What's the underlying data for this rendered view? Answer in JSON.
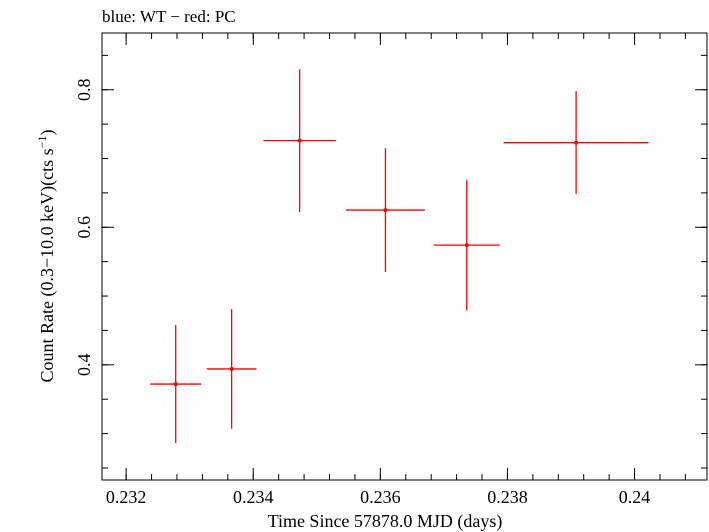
{
  "chart_data": {
    "type": "scatter",
    "title": "blue: WT − red: PC",
    "xlabel": "Time Since 57878.0 MJD (days)",
    "ylabel_main": "Count Rate (0.3−10.0 keV)(cts s",
    "ylabel_sup": "−1",
    "ylabel_close": ")",
    "xlim": [
      0.23162,
      0.24114
    ],
    "ylim": [
      0.2325,
      0.8825
    ],
    "xticks": [
      0.232,
      0.234,
      0.236,
      0.238,
      0.24
    ],
    "xtick_labels": [
      "0.232",
      "0.234",
      "0.236",
      "0.238",
      "0.24"
    ],
    "yticks": [
      0.4,
      0.6,
      0.8
    ],
    "ytick_labels": [
      "0.4",
      "0.6",
      "0.8"
    ],
    "grid": false,
    "series": [
      {
        "color": "#ff0000",
        "points": [
          {
            "x": 0.23278,
            "xerr_lo": 0.0004,
            "xerr_hi": 0.0004,
            "y": 0.372,
            "yerr": 0.086
          },
          {
            "x": 0.23366,
            "xerr_lo": 0.00039,
            "xerr_hi": 0.00039,
            "y": 0.394,
            "yerr": 0.087
          },
          {
            "x": 0.23473,
            "xerr_lo": 0.00057,
            "xerr_hi": 0.00057,
            "y": 0.726,
            "yerr": 0.104
          },
          {
            "x": 0.23608,
            "xerr_lo": 0.00062,
            "xerr_hi": 0.00062,
            "y": 0.625,
            "yerr": 0.09
          },
          {
            "x": 0.23736,
            "xerr_lo": 0.00052,
            "xerr_hi": 0.00052,
            "y": 0.574,
            "yerr": 0.095
          },
          {
            "x": 0.23908,
            "xerr_lo": 0.00114,
            "xerr_hi": 0.00114,
            "y": 0.723,
            "yerr": 0.075
          }
        ]
      }
    ]
  }
}
